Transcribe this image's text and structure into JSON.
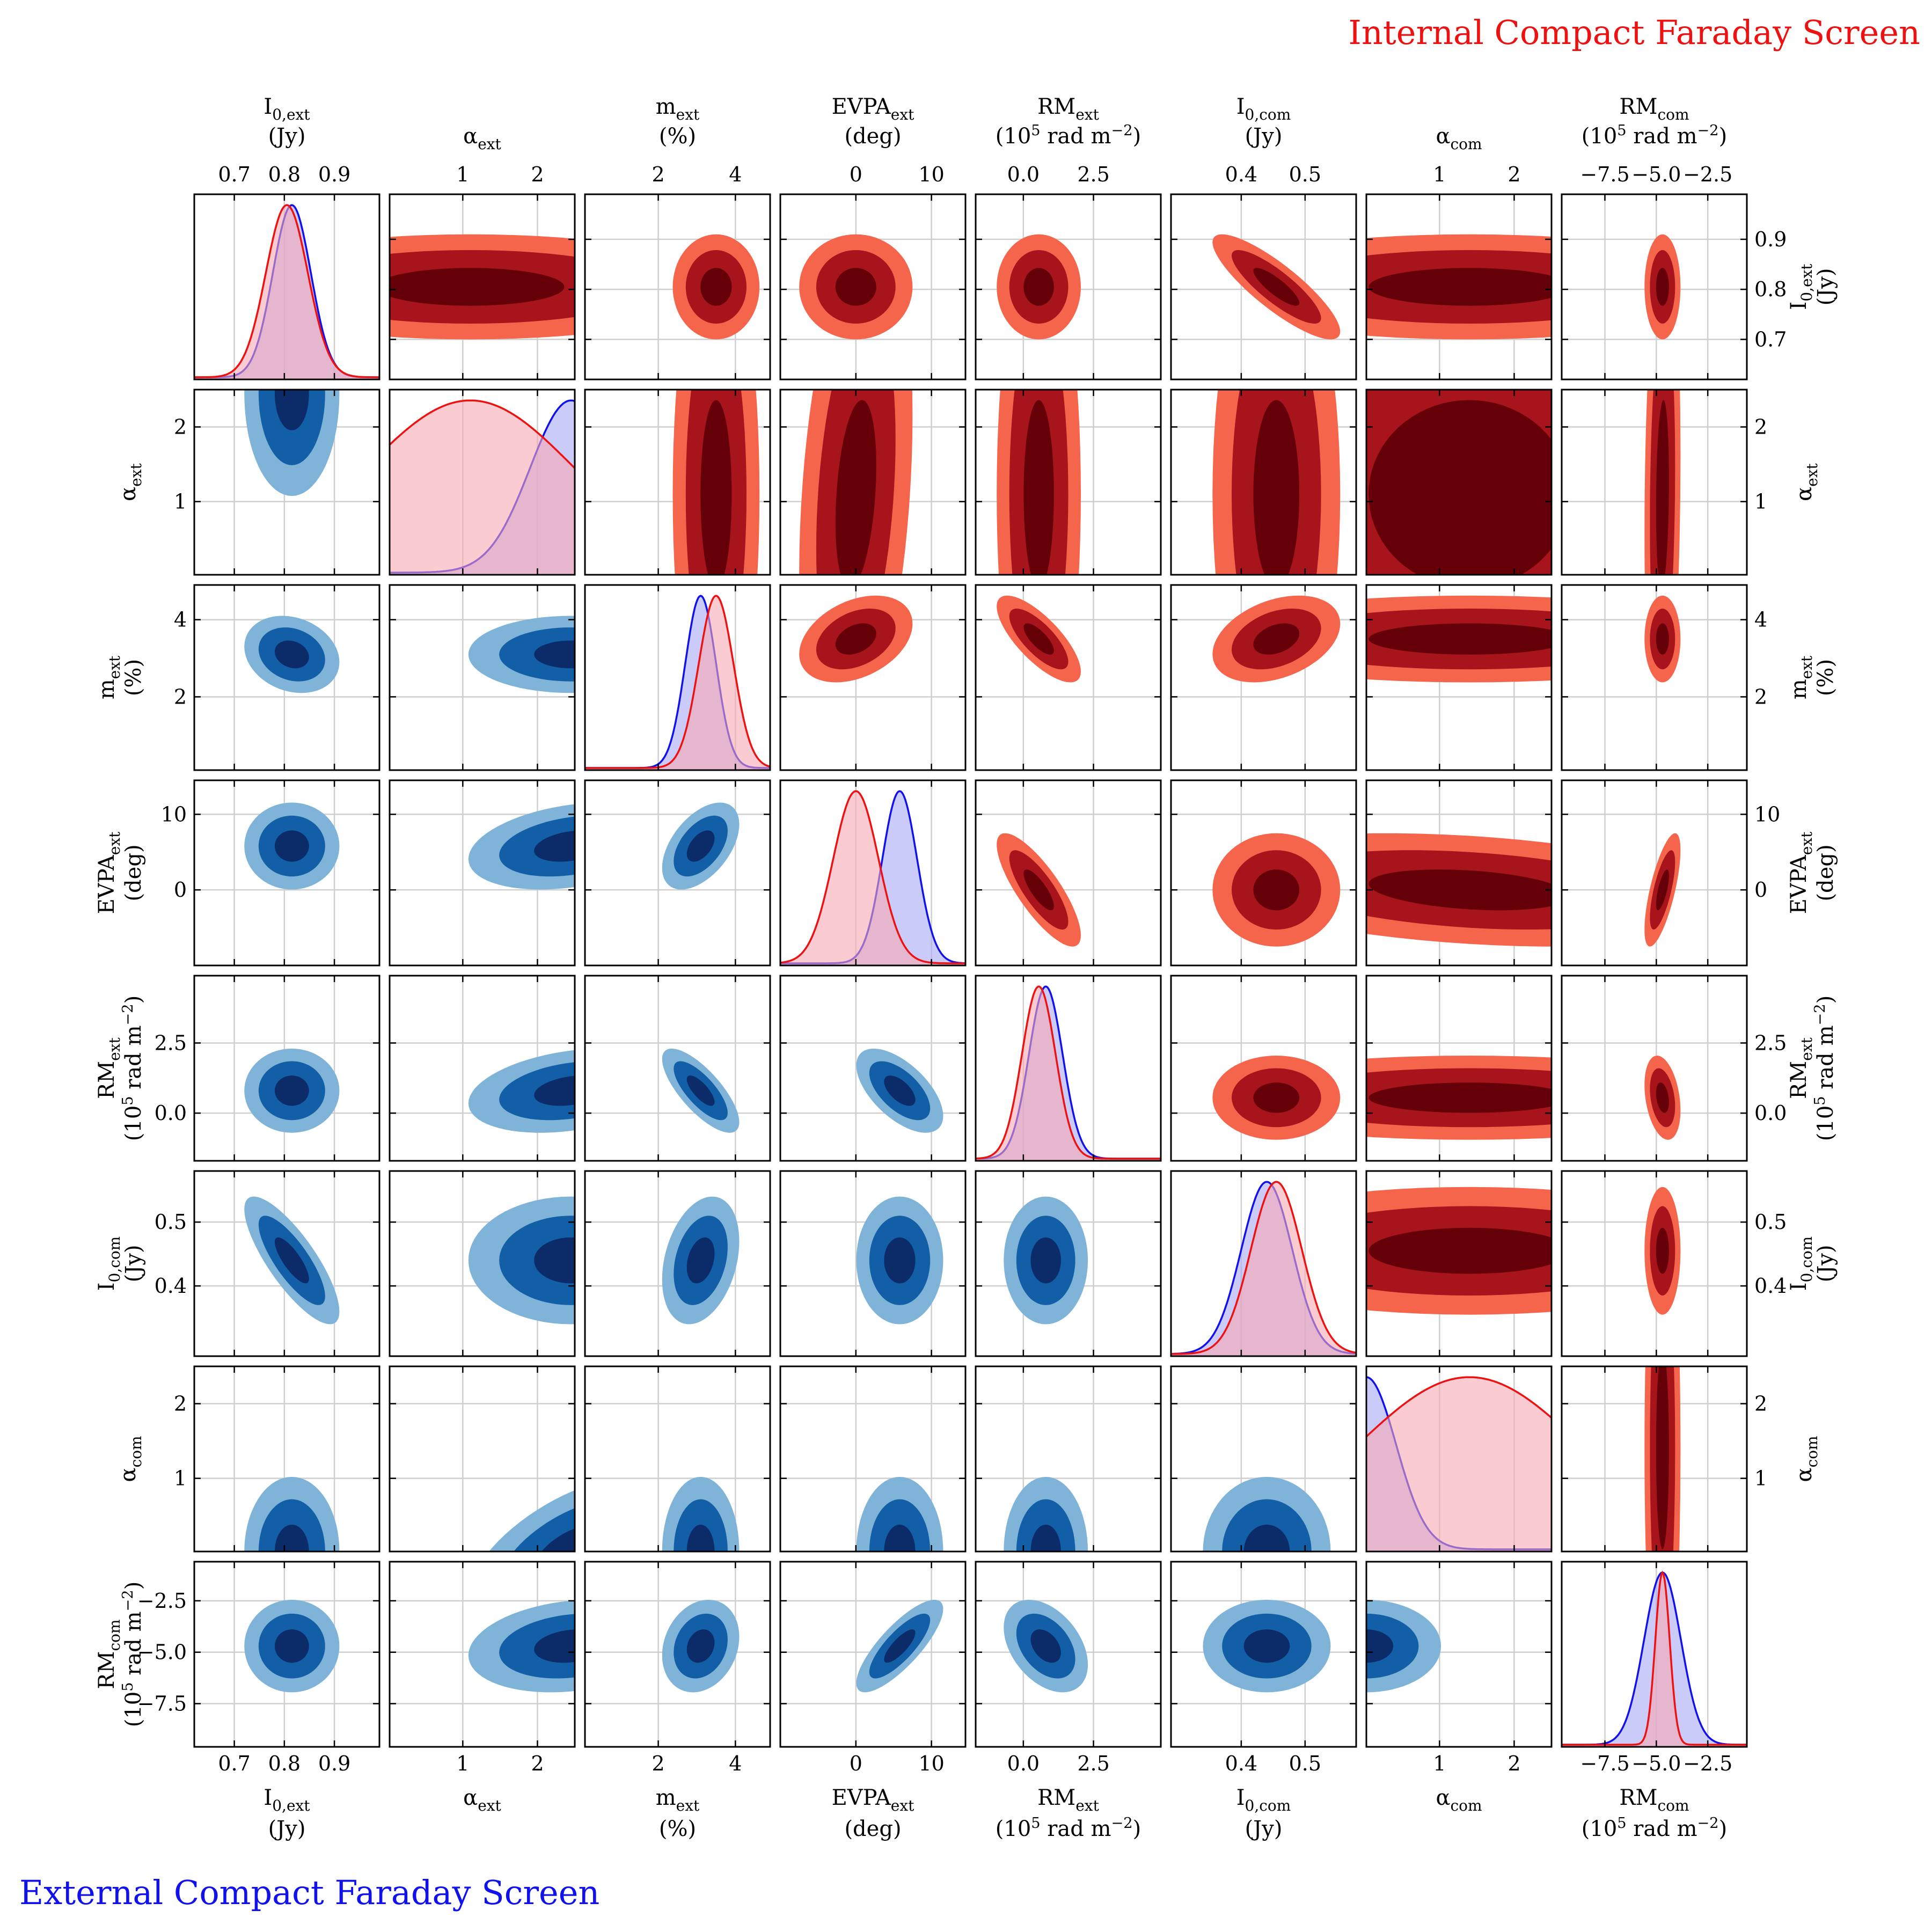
{
  "figure": {
    "title_internal": "Internal Compact Faraday Screen",
    "title_external": "External Compact Faraday Screen",
    "colors": {
      "internal": "#ee1111",
      "external": "#1111ee",
      "internal_fill": "#f7a9b0",
      "external_fill": "#a9a9f7",
      "red_levels": [
        "#f5654c",
        "#a8141c",
        "#660008"
      ],
      "blue_levels": [
        "#7fb4d8",
        "#135fa7",
        "#0b2c68"
      ]
    }
  },
  "chart_data": {
    "type": "corner",
    "parameters": [
      {
        "key": "I0ext",
        "name": "I_{0,ext}",
        "unit": "(Jy)",
        "range": [
          0.62,
          0.99
        ],
        "ticks": [
          0.7,
          0.8,
          0.9
        ],
        "tick_labels": [
          "0.7",
          "0.8",
          "0.9"
        ],
        "mean_int": 0.805,
        "sd_int": 0.042,
        "mean_ext": 0.815,
        "sd_ext": 0.038
      },
      {
        "key": "aext",
        "name": "α_ext",
        "unit": "",
        "range": [
          0.02,
          2.5
        ],
        "ticks": [
          1,
          2
        ],
        "tick_labels": [
          "1",
          "2"
        ],
        "mean_int": 1.1,
        "sd_int": 1.4,
        "mean_ext": 2.45,
        "sd_ext": 0.55
      },
      {
        "key": "mext",
        "name": "m_ext",
        "unit": "(%)",
        "range": [
          0.1,
          4.9
        ],
        "ticks": [
          2,
          4
        ],
        "tick_labels": [
          "2",
          "4"
        ],
        "mean_int": 3.5,
        "sd_int": 0.45,
        "mean_ext": 3.1,
        "sd_ext": 0.4
      },
      {
        "key": "evpa",
        "name": "EVPA_ext",
        "unit": "(deg)",
        "range": [
          -10,
          14.5
        ],
        "ticks": [
          0,
          10
        ],
        "tick_labels": [
          "0",
          "10"
        ],
        "mean_int": 0.0,
        "sd_int": 3.0,
        "mean_ext": 5.8,
        "sd_ext": 2.3
      },
      {
        "key": "rmext",
        "name": "RM_ext",
        "unit": "(10^5 rad m^-2)",
        "range": [
          -1.7,
          4.9
        ],
        "ticks": [
          0,
          2.5
        ],
        "tick_labels": [
          "0.0",
          "2.5"
        ],
        "mean_int": 0.55,
        "sd_int": 0.6,
        "mean_ext": 0.8,
        "sd_ext": 0.6
      },
      {
        "key": "I0com",
        "name": "I_{0,com}",
        "unit": "(Jy)",
        "range": [
          0.29,
          0.58
        ],
        "ticks": [
          0.4,
          0.5
        ],
        "tick_labels": [
          "0.4",
          "0.5"
        ],
        "mean_int": 0.455,
        "sd_int": 0.04,
        "mean_ext": 0.44,
        "sd_ext": 0.04
      },
      {
        "key": "acom",
        "name": "α_com",
        "unit": "",
        "range": [
          0.02,
          2.5
        ],
        "ticks": [
          1,
          2
        ],
        "tick_labels": [
          "1",
          "2"
        ],
        "mean_int": 1.4,
        "sd_int": 1.5,
        "mean_ext": 0.02,
        "sd_ext": 0.4
      },
      {
        "key": "rmcom",
        "name": "RM_com",
        "unit": "(10^5 rad m^-2)",
        "range": [
          -9.6,
          -0.6
        ],
        "ticks": [
          -7.5,
          -5,
          -2.5
        ],
        "tick_labels": [
          "−7.5",
          "−5.0",
          "−2.5"
        ],
        "mean_int": -4.7,
        "sd_int": 0.35,
        "mean_ext": -4.7,
        "sd_ext": 0.9
      }
    ],
    "correlation_internal": [
      [
        1,
        0,
        0,
        0,
        0,
        -0.85,
        0,
        0
      ],
      [
        0,
        1,
        0,
        0.3,
        0,
        0,
        0,
        0.15
      ],
      [
        0,
        0,
        1,
        0.35,
        -0.75,
        0.35,
        0,
        0
      ],
      [
        0,
        0.3,
        0.35,
        1,
        -0.8,
        0,
        -0.3,
        0.7
      ],
      [
        0,
        0,
        -0.75,
        -0.8,
        1,
        0,
        0,
        -0.3
      ],
      [
        -0.85,
        0,
        0.35,
        0,
        0,
        1,
        0,
        0
      ],
      [
        0,
        0,
        0,
        -0.3,
        0,
        0,
        1,
        0
      ],
      [
        0,
        0.15,
        0,
        0.7,
        -0.3,
        0,
        0,
        1
      ]
    ],
    "correlation_external": [
      [
        1,
        0,
        -0.2,
        0,
        0,
        -0.8,
        0,
        0
      ],
      [
        0,
        1,
        0,
        0.3,
        0.3,
        0,
        0.6,
        0.2
      ],
      [
        -0.2,
        0,
        1,
        0.5,
        -0.75,
        0.3,
        0,
        0.2
      ],
      [
        0,
        0.3,
        0.5,
        1,
        -0.6,
        0,
        0,
        0.8
      ],
      [
        0,
        0.3,
        -0.75,
        -0.6,
        1,
        0,
        0,
        -0.4
      ],
      [
        -0.8,
        0,
        0.3,
        0,
        0,
        1,
        0,
        0
      ],
      [
        0,
        0.6,
        0,
        0,
        0,
        0,
        1,
        0
      ],
      [
        0,
        0.2,
        0.2,
        0.8,
        -0.4,
        0,
        0,
        1
      ]
    ],
    "upper_triangle": "internal",
    "lower_triangle": "external",
    "grid": true
  }
}
